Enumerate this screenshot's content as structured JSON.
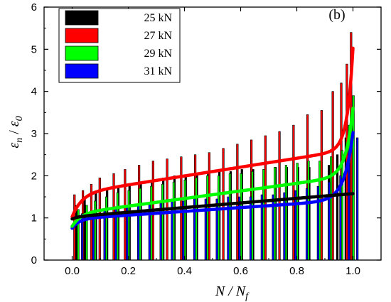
{
  "chart_data": {
    "type": "bar",
    "panel_label": "(b)",
    "xlabel": {
      "base": "N / N",
      "sub": "f"
    },
    "ylabel": {
      "num": "ε",
      "num_sub": "n",
      "sep": " / ",
      "den": "ε",
      "den_sub": "0"
    },
    "xlim": [
      -0.1,
      1.1
    ],
    "ylim": [
      0,
      6
    ],
    "xticks": [
      0.0,
      0.2,
      0.4,
      0.6,
      0.8,
      1.0
    ],
    "xtick_labels": [
      "0.0",
      "0.2",
      "0.4",
      "0.6",
      "0.8",
      "1.0"
    ],
    "yticks": [
      0,
      1,
      2,
      3,
      4,
      5,
      6
    ],
    "ytick_labels": [
      "0",
      "1",
      "2",
      "3",
      "4",
      "5",
      "6"
    ],
    "legend_position": "top-left",
    "series": [
      {
        "name": "25 kN",
        "color": "#000000",
        "x": [
          0.02,
          0.05,
          0.09,
          0.13,
          0.17,
          0.21,
          0.25,
          0.29,
          0.33,
          0.37,
          0.41,
          0.45,
          0.49,
          0.53,
          0.57,
          0.61,
          0.65,
          0.69,
          0.73,
          0.77,
          0.81,
          0.85,
          0.89,
          0.92,
          0.95,
          0.98
        ],
        "y": [
          1.3,
          1.5,
          1.6,
          1.7,
          1.75,
          1.8,
          1.85,
          1.9,
          1.95,
          2.0,
          2.0,
          2.05,
          2.05,
          2.1,
          2.1,
          2.15,
          2.15,
          2.15,
          2.2,
          2.2,
          2.2,
          2.2,
          2.1,
          2.25,
          2.5,
          2.9
        ],
        "curve": {
          "y0": 1.3,
          "slope": 0.55,
          "amp": 0.05,
          "dec": 0.02,
          "growth": 0,
          "tau": 0.02
        }
      },
      {
        "name": "27 kN",
        "color": "#ff0000",
        "x": [
          0.01,
          0.04,
          0.07,
          0.1,
          0.15,
          0.19,
          0.24,
          0.29,
          0.34,
          0.39,
          0.44,
          0.49,
          0.54,
          0.59,
          0.64,
          0.69,
          0.74,
          0.79,
          0.84,
          0.89,
          0.93,
          0.96,
          0.98,
          0.995
        ],
        "y": [
          1.55,
          1.65,
          1.8,
          1.95,
          2.05,
          2.15,
          2.25,
          2.35,
          2.4,
          2.45,
          2.5,
          2.55,
          2.65,
          2.75,
          2.85,
          2.95,
          3.05,
          3.2,
          3.45,
          3.55,
          4.0,
          4.2,
          4.65,
          5.4
        ],
        "curve": {
          "y0": 2.1,
          "slope": 1.05,
          "amp": 0.55,
          "dec": 0.035,
          "growth": 0.06,
          "tau": 0.02
        }
      },
      {
        "name": "29 kN",
        "color": "#00ff00",
        "x": [
          0.02,
          0.05,
          0.08,
          0.12,
          0.16,
          0.2,
          0.24,
          0.28,
          0.32,
          0.36,
          0.4,
          0.44,
          0.48,
          0.52,
          0.56,
          0.6,
          0.64,
          0.68,
          0.72,
          0.76,
          0.8,
          0.84,
          0.88,
          0.92,
          0.96,
          0.985,
          1.0
        ],
        "y": [
          1.2,
          1.3,
          1.4,
          1.5,
          1.6,
          1.65,
          1.7,
          1.75,
          1.8,
          1.85,
          1.9,
          1.95,
          2.0,
          2.0,
          2.05,
          2.05,
          2.1,
          2.15,
          2.2,
          2.25,
          2.3,
          2.35,
          2.35,
          2.45,
          2.6,
          3.2,
          3.9
        ],
        "curve": {
          "y0": 1.55,
          "slope": 0.9,
          "amp": 0.3,
          "dec": 0.03,
          "growth": 0.04,
          "tau": 0.025
        }
      },
      {
        "name": "31 kN",
        "color": "#0000ff",
        "x": [
          0.03,
          0.07,
          0.11,
          0.15,
          0.19,
          0.23,
          0.27,
          0.31,
          0.35,
          0.39,
          0.43,
          0.47,
          0.51,
          0.55,
          0.59,
          0.63,
          0.67,
          0.71,
          0.75,
          0.79,
          0.83,
          0.87,
          0.91,
          0.95,
          0.98,
          1.01
        ],
        "y": [
          1.1,
          1.15,
          1.2,
          1.25,
          1.3,
          1.3,
          1.35,
          1.35,
          1.4,
          1.4,
          1.45,
          1.45,
          1.45,
          1.5,
          1.5,
          1.5,
          1.55,
          1.55,
          1.6,
          1.65,
          1.7,
          1.75,
          1.85,
          2.0,
          2.3,
          2.9
        ],
        "curve": {
          "y0": 1.2,
          "slope": 0.45,
          "amp": 0.22,
          "dec": 0.025,
          "growth": 0.04,
          "tau": 0.03
        }
      }
    ]
  }
}
